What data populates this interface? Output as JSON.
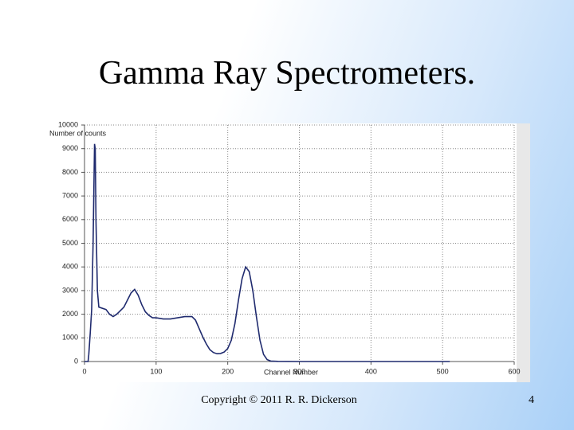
{
  "title": "Gamma Ray Spectrometers.",
  "footer": "Copyright © 2011  R. R. Dickerson",
  "page_number": 4,
  "chart_data": {
    "type": "line",
    "y_label": "Number of counts",
    "x_label": "Channel Number",
    "x": [
      0,
      5,
      6,
      8,
      10,
      12,
      14,
      15,
      16,
      18,
      20,
      25,
      30,
      35,
      40,
      45,
      50,
      55,
      60,
      65,
      70,
      75,
      80,
      85,
      90,
      95,
      100,
      110,
      120,
      130,
      140,
      150,
      155,
      160,
      165,
      170,
      175,
      180,
      185,
      190,
      195,
      200,
      205,
      210,
      215,
      220,
      225,
      230,
      235,
      240,
      245,
      250,
      255,
      260,
      270,
      300,
      400,
      510
    ],
    "values": [
      0,
      0,
      300,
      1200,
      2200,
      5000,
      9200,
      9000,
      6000,
      3000,
      2300,
      2250,
      2200,
      2000,
      1900,
      2000,
      2150,
      2300,
      2600,
      2900,
      3050,
      2800,
      2400,
      2100,
      1950,
      1850,
      1850,
      1800,
      1800,
      1850,
      1900,
      1900,
      1750,
      1400,
      1050,
      750,
      500,
      380,
      330,
      340,
      400,
      550,
      900,
      1600,
      2600,
      3500,
      4000,
      3800,
      3000,
      1900,
      900,
      300,
      80,
      20,
      5,
      0,
      0,
      0
    ],
    "color": "#1f2a6e",
    "xlim": [
      0,
      600
    ],
    "xticks": [
      0,
      100,
      200,
      300,
      400,
      500,
      600
    ],
    "ylim": [
      0,
      10000
    ],
    "yticks": [
      0,
      1000,
      2000,
      3000,
      4000,
      5000,
      6000,
      7000,
      8000,
      9000,
      10000
    ],
    "grid": true
  }
}
